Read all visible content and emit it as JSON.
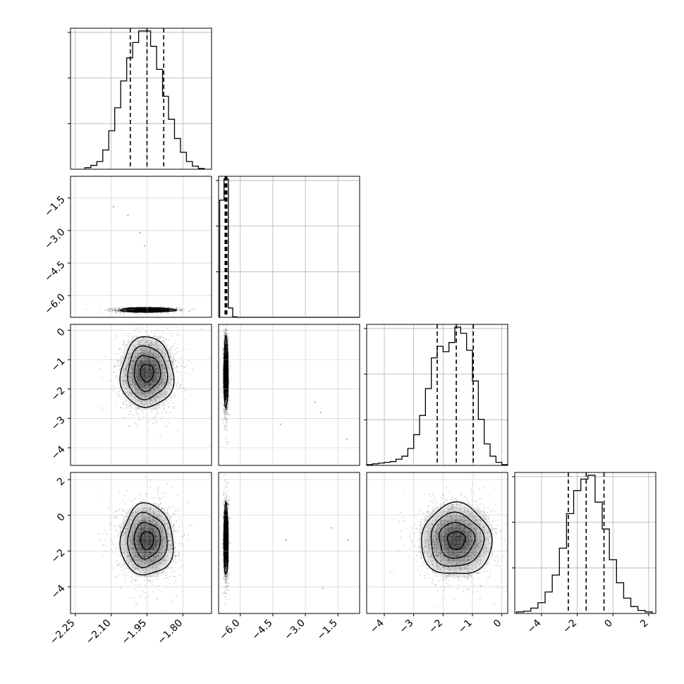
{
  "chart_data": {
    "type": "corner",
    "style": {
      "line_color": "#000000",
      "grid_color": "#b0b0b0",
      "sample_color": "#000000"
    },
    "parameters": [
      {
        "index": 0,
        "range": [
          -2.27,
          -1.68
        ],
        "ticks": [
          -2.25,
          -2.1,
          -1.95,
          -1.8
        ],
        "tick_labels": [
          "−2.25",
          "−2.10",
          "−1.95",
          "−1.80"
        ],
        "quantiles": [
          -2.02,
          -1.95,
          -1.88
        ],
        "mean": -1.95,
        "sd": 0.055
      },
      {
        "index": 1,
        "range": [
          -7.0,
          -0.5
        ],
        "ticks": [
          -6.0,
          -4.5,
          -3.0,
          -1.5
        ],
        "tick_labels": [
          "−6.0",
          "−4.5",
          "−3.0",
          "−1.5"
        ],
        "quantiles": [
          -6.7,
          -6.65,
          -6.62
        ],
        "mean": -6.66,
        "sd": 0.05
      },
      {
        "index": 2,
        "range": [
          -4.6,
          0.2
        ],
        "ticks": [
          -4,
          -3,
          -2,
          -1,
          0
        ],
        "tick_labels": [
          "−4",
          "−3",
          "−2",
          "−1",
          "0"
        ],
        "quantiles": [
          -2.2,
          -1.55,
          -0.97
        ],
        "mean": -1.55,
        "sd": 0.6
      },
      {
        "index": 3,
        "range": [
          -5.5,
          2.4
        ],
        "ticks": [
          -4,
          -2,
          0,
          2
        ],
        "tick_labels": [
          "−4",
          "−2",
          "0",
          "2"
        ],
        "quantiles": [
          -2.5,
          -1.5,
          -0.5
        ],
        "mean": -1.5,
        "sd": 1.0
      }
    ],
    "histograms": [
      {
        "param": 0,
        "bin_edges": [
          -2.21,
          -2.185,
          -2.16,
          -2.135,
          -2.11,
          -2.085,
          -2.06,
          -2.035,
          -2.01,
          -1.985,
          -1.96,
          -1.935,
          -1.91,
          -1.885,
          -1.86,
          -1.835,
          -1.81,
          -1.785,
          -1.76,
          -1.735,
          -1.71
        ],
        "counts": [
          2,
          5,
          10,
          25,
          50,
          80,
          115,
          145,
          165,
          180,
          180,
          160,
          130,
          95,
          65,
          40,
          22,
          10,
          4,
          1
        ]
      },
      {
        "param": 1,
        "bin_edges": [
          -6.95,
          -6.75,
          -6.55,
          -6.35,
          -6.15,
          -5.95,
          -5.75,
          -5.55,
          -5.35,
          -5.15,
          -4.95,
          -4.75,
          -4.55,
          -4.35,
          -4.15,
          -3.95,
          -3.75,
          -3.55,
          -3.35,
          -3.15,
          -2.95,
          -2.75,
          -2.55,
          -2.35,
          -2.15,
          -1.95,
          -1.75,
          -1.55,
          -1.35,
          -1.15,
          -0.95,
          -0.75,
          -0.55
        ],
        "counts": [
          1000,
          1180,
          80,
          4,
          0,
          0,
          0,
          0,
          0,
          0,
          0,
          0,
          0,
          0,
          0,
          0,
          0,
          0,
          0,
          0,
          0,
          0,
          0,
          0,
          0,
          0,
          0,
          0,
          0,
          0,
          0,
          0
        ]
      },
      {
        "param": 2,
        "bin_edges": [
          -4.6,
          -4.4,
          -4.2,
          -4.0,
          -3.8,
          -3.6,
          -3.4,
          -3.2,
          -3.0,
          -2.8,
          -2.6,
          -2.4,
          -2.2,
          -2.0,
          -1.8,
          -1.6,
          -1.4,
          -1.2,
          -1.0,
          -0.8,
          -0.6,
          -0.4,
          -0.2,
          0.0,
          0.2
        ],
        "counts": [
          1,
          2,
          3,
          4,
          5,
          8,
          12,
          22,
          40,
          65,
          100,
          140,
          155,
          148,
          160,
          180,
          172,
          150,
          110,
          60,
          28,
          12,
          4,
          1
        ]
      },
      {
        "param": 3,
        "bin_edges": [
          -5.4,
          -5.0,
          -4.6,
          -4.2,
          -3.8,
          -3.4,
          -3.0,
          -2.6,
          -2.2,
          -1.8,
          -1.4,
          -1.0,
          -0.6,
          -0.2,
          0.2,
          0.6,
          1.0,
          1.4,
          1.8,
          2.2
        ],
        "counts": [
          2,
          3,
          7,
          14,
          28,
          50,
          85,
          130,
          160,
          175,
          180,
          145,
          110,
          70,
          40,
          20,
          9,
          4,
          2
        ]
      }
    ],
    "pairs": [
      {
        "row": 1,
        "col": 0,
        "mean": [
          -1.95,
          -6.66
        ],
        "sd": [
          0.055,
          0.05
        ],
        "contour_sigma": [
          1.0,
          1.6,
          2.1
        ]
      },
      {
        "row": 2,
        "col": 0,
        "mean": [
          -1.95,
          -1.45
        ],
        "sd": [
          0.055,
          0.6
        ],
        "contour_sigma": [
          0.5,
          1.0,
          1.5,
          2.0
        ]
      },
      {
        "row": 2,
        "col": 1,
        "mean": [
          -6.66,
          -1.45
        ],
        "sd": [
          0.05,
          0.6
        ],
        "contour_sigma": [
          0.5,
          1.0,
          1.5,
          2.0
        ]
      },
      {
        "row": 3,
        "col": 0,
        "mean": [
          -1.95,
          -1.4
        ],
        "sd": [
          0.055,
          1.0
        ],
        "contour_sigma": [
          0.5,
          1.0,
          1.5,
          2.0
        ]
      },
      {
        "row": 3,
        "col": 1,
        "mean": [
          -6.66,
          -1.4
        ],
        "sd": [
          0.05,
          1.0
        ],
        "contour_sigma": [
          0.5,
          1.0,
          1.5,
          2.0
        ]
      },
      {
        "row": 3,
        "col": 2,
        "mean": [
          -1.55,
          -1.4
        ],
        "sd": [
          0.6,
          1.0
        ],
        "contour_sigma": [
          0.5,
          1.0,
          1.5,
          2.0
        ]
      }
    ],
    "outlier_points": [
      {
        "row": 1,
        "col": 0,
        "points": [
          [
            -2.09,
            -1.9
          ],
          [
            -2.03,
            -2.3
          ],
          [
            -1.98,
            -3.1
          ],
          [
            -1.96,
            -3.7
          ]
        ]
      },
      {
        "row": 2,
        "col": 1,
        "points": [
          [
            -2.55,
            -2.45
          ],
          [
            -2.3,
            -2.8
          ],
          [
            -1.1,
            -3.7
          ],
          [
            -4.15,
            -3.2
          ]
        ]
      },
      {
        "row": 3,
        "col": 1,
        "points": [
          [
            -3.9,
            -1.4
          ],
          [
            -1.8,
            -0.7
          ],
          [
            -1.05,
            -1.4
          ],
          [
            -2.2,
            -4.1
          ]
        ]
      }
    ]
  }
}
